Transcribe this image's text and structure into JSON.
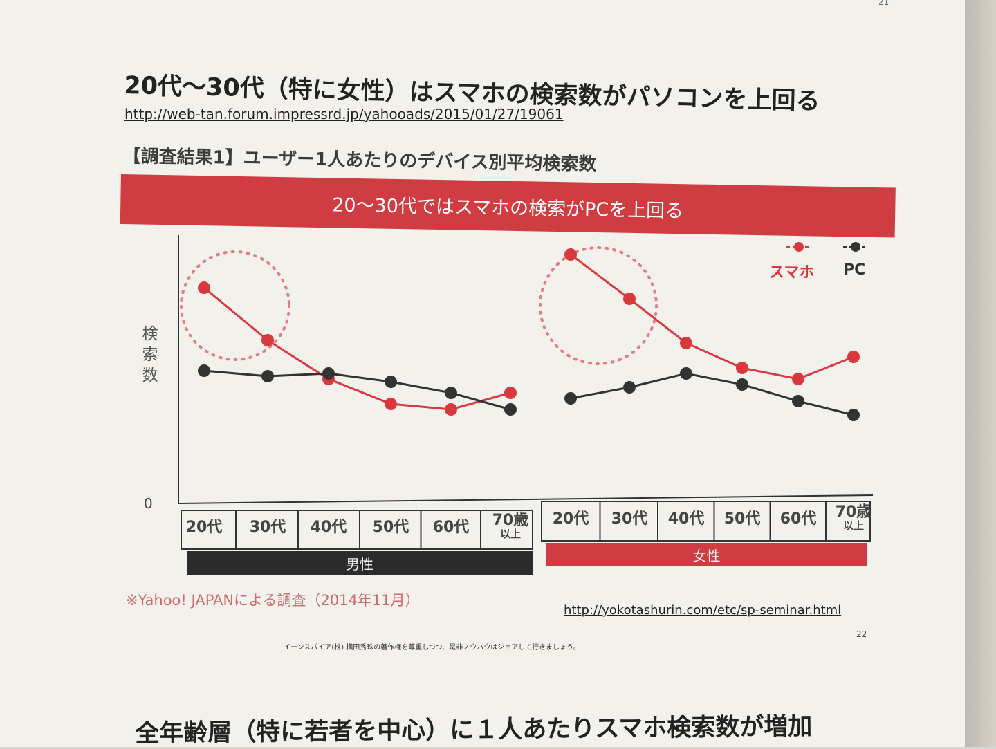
{
  "page": {
    "corner_number": "21",
    "slide_title": "20代〜30代（特に女性）はスマホの検索数がパソコンを上回る",
    "source_url": "http://web-tan.forum.impressrd.jp/yahooads/2015/01/27/19061",
    "chart_title": "【調査結果1】ユーザー1人あたりのデバイス別平均検索数",
    "banner": "20〜30代ではスマホの検索がPCを上回る",
    "survey_note": "※Yahoo! JAPANによる調査（2014年11月）",
    "url2": "http://yokotashurin.com/etc/sp-seminar.html",
    "page_number": "22",
    "footer_note": "イーンスパイア(株) 横田秀珠の著作権を尊重しつつ、是非ノウハウはシェアして行きましょう。",
    "bottom_heading": "全年齢層（特に若者を中心）に１人あたりスマホ検索数が増加"
  },
  "chart_data": {
    "type": "line",
    "title": "【調査結果1】ユーザー1人あたりのデバイス別平均検索数",
    "ylabel": "検索数",
    "zero_label": "0",
    "legend_position": "top-right",
    "groups": [
      {
        "name": "男性",
        "color": "#2b2b2b",
        "categories": [
          "20代",
          "30代",
          "40代",
          "50代",
          "60代",
          "70歳以上"
        ],
        "series": [
          {
            "name": "スマホ",
            "color": "#d9383e",
            "values": [
              78,
              59,
              45,
              36,
              34,
              40
            ]
          },
          {
            "name": "PC",
            "color": "#333333",
            "values": [
              48,
              46,
              47,
              44,
              40,
              34
            ]
          }
        ]
      },
      {
        "name": "女性",
        "color": "#cf3d43",
        "categories": [
          "20代",
          "30代",
          "40代",
          "50代",
          "60代",
          "70歳以上"
        ],
        "series": [
          {
            "name": "スマホ",
            "color": "#d9383e",
            "values": [
              90,
              74,
              58,
              49,
              45,
              53
            ]
          },
          {
            "name": "PC",
            "color": "#333333",
            "values": [
              38,
              42,
              47,
              43,
              37,
              32
            ]
          }
        ]
      }
    ],
    "highlight": "20代・30代 dotted circle"
  }
}
